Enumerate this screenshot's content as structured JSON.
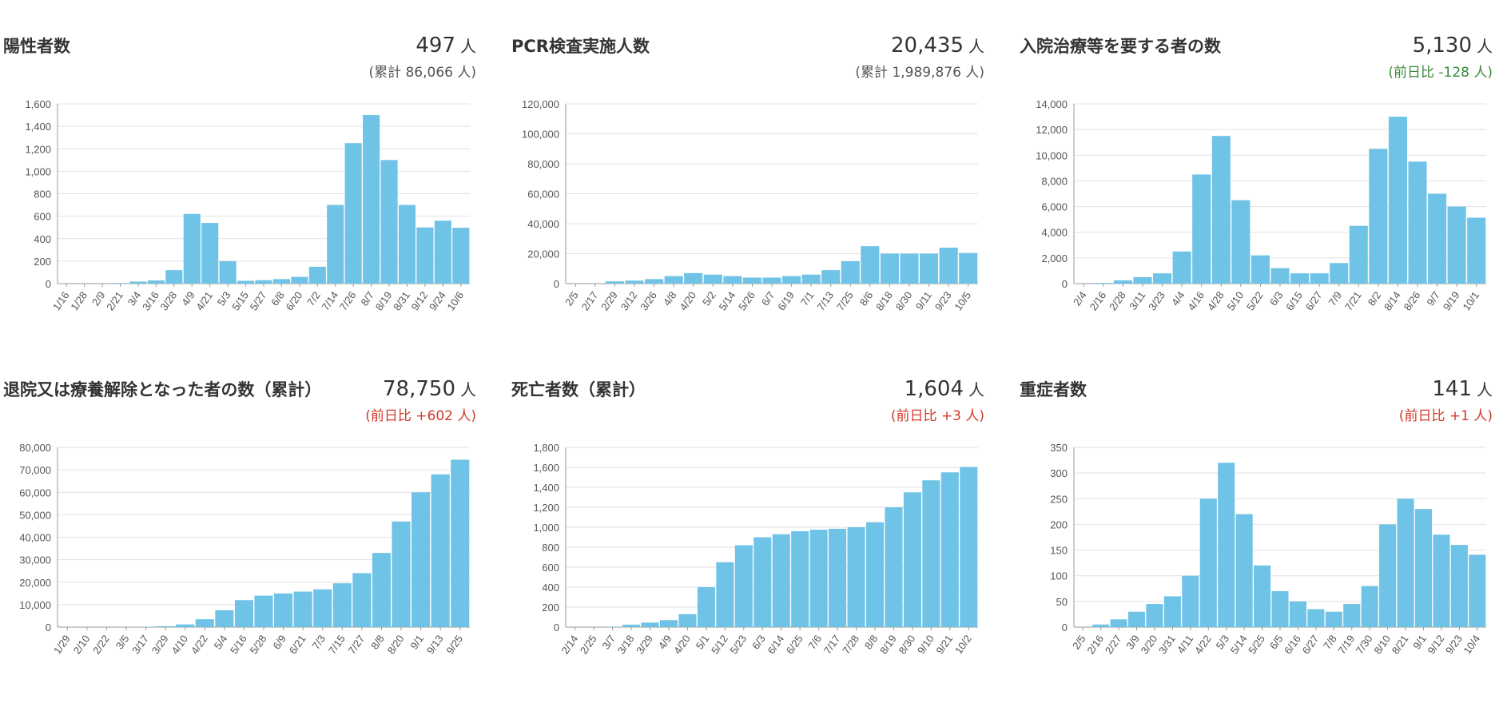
{
  "colors": {
    "bar": "#6fc3e6",
    "grid": "#e2e2e2",
    "axis": "#999999",
    "label": "#555555",
    "title": "#333333",
    "neg_green": "#3a8a3a",
    "pos_red": "#d23a2a"
  },
  "panels": [
    {
      "title": "陽性者数",
      "value": "497",
      "unit": "人",
      "sub": "(累計 86,066 人)",
      "sub_color": "#555555"
    },
    {
      "title": "PCR検査実施人数",
      "value": "20,435",
      "unit": "人",
      "sub": "(累計 1,989,876 人)",
      "sub_color": "#555555"
    },
    {
      "title": "入院治療等を要する者の数",
      "value": "5,130",
      "unit": "人",
      "sub": "(前日比 -128 人)",
      "sub_color": "#3a8a3a"
    },
    {
      "title": "退院又は療養解除となった者の数（累計）",
      "value": "78,750",
      "unit": "人",
      "sub": "(前日比 +602 人)",
      "sub_color": "#d23a2a"
    },
    {
      "title": "死亡者数（累計）",
      "value": "1,604",
      "unit": "人",
      "sub": "(前日比 +3 人)",
      "sub_color": "#d23a2a"
    },
    {
      "title": "重症者数",
      "value": "141",
      "unit": "人",
      "sub": "(前日比 +1 人)",
      "sub_color": "#d23a2a"
    }
  ],
  "chart_data": [
    {
      "type": "bar",
      "ylim": [
        0,
        1600
      ],
      "yticks": [
        "0",
        "200",
        "400",
        "600",
        "800",
        "1,000",
        "1,200",
        "1,400",
        "1,600"
      ],
      "categories": [
        "1/16",
        "1/28",
        "2/9",
        "2/21",
        "3/4",
        "3/16",
        "3/28",
        "4/9",
        "4/21",
        "5/3",
        "5/15",
        "5/27",
        "6/8",
        "6/20",
        "7/2",
        "7/14",
        "7/26",
        "8/7",
        "8/19",
        "8/31",
        "9/12",
        "9/24",
        "10/6"
      ],
      "values": [
        0,
        0,
        1,
        5,
        18,
        28,
        120,
        620,
        540,
        200,
        25,
        30,
        40,
        60,
        150,
        700,
        1250,
        1500,
        1100,
        700,
        500,
        560,
        497
      ]
    },
    {
      "type": "bar",
      "ylim": [
        0,
        120000
      ],
      "yticks": [
        "0",
        "20,000",
        "40,000",
        "60,000",
        "80,000",
        "100,000",
        "120,000"
      ],
      "categories": [
        "2/5",
        "2/17",
        "2/29",
        "3/12",
        "3/26",
        "4/8",
        "4/20",
        "5/2",
        "5/14",
        "5/26",
        "6/7",
        "6/19",
        "7/1",
        "7/13",
        "7/25",
        "8/6",
        "8/18",
        "8/30",
        "9/11",
        "9/23",
        "10/5"
      ],
      "values": [
        0,
        0,
        1500,
        2000,
        3000,
        5000,
        7000,
        6000,
        5000,
        4000,
        4000,
        5000,
        6000,
        9000,
        15000,
        25000,
        20000,
        20000,
        20000,
        24000,
        20435
      ]
    },
    {
      "type": "bar",
      "ylim": [
        0,
        14000
      ],
      "yticks": [
        "0",
        "2,000",
        "4,000",
        "6,000",
        "8,000",
        "10,000",
        "12,000",
        "14,000"
      ],
      "categories": [
        "2/4",
        "2/16",
        "2/28",
        "3/11",
        "3/23",
        "4/4",
        "4/16",
        "4/28",
        "5/10",
        "5/22",
        "6/3",
        "6/15",
        "6/27",
        "7/9",
        "7/21",
        "8/2",
        "8/14",
        "8/26",
        "9/7",
        "9/19",
        "10/1"
      ],
      "values": [
        0,
        50,
        250,
        500,
        800,
        2500,
        8500,
        11500,
        6500,
        2200,
        1200,
        800,
        800,
        1600,
        4500,
        10500,
        13000,
        9500,
        7000,
        6000,
        5130
      ]
    },
    {
      "type": "bar",
      "ylim": [
        0,
        80000
      ],
      "yticks": [
        "0",
        "10,000",
        "20,000",
        "30,000",
        "40,000",
        "50,000",
        "60,000",
        "70,000",
        "80,000"
      ],
      "categories": [
        "1/29",
        "2/10",
        "2/22",
        "3/5",
        "3/17",
        "3/29",
        "4/10",
        "4/22",
        "5/4",
        "5/16",
        "5/28",
        "6/9",
        "6/21",
        "7/3",
        "7/15",
        "7/27",
        "8/8",
        "8/20",
        "9/1",
        "9/13",
        "9/25"
      ],
      "values": [
        0,
        0,
        0,
        50,
        150,
        400,
        1200,
        3500,
        7500,
        12000,
        14000,
        15000,
        15800,
        16800,
        19500,
        24000,
        33000,
        47000,
        60000,
        68000,
        74500
      ]
    },
    {
      "type": "bar",
      "ylim": [
        0,
        1800
      ],
      "yticks": [
        "0",
        "200",
        "400",
        "600",
        "800",
        "1,000",
        "1,200",
        "1,400",
        "1,600",
        "1,800"
      ],
      "categories": [
        "2/14",
        "2/25",
        "3/7",
        "3/18",
        "3/29",
        "4/9",
        "4/20",
        "5/1",
        "5/12",
        "5/23",
        "6/3",
        "6/14",
        "6/25",
        "7/6",
        "7/17",
        "7/28",
        "8/8",
        "8/19",
        "8/30",
        "9/10",
        "9/21",
        "10/2"
      ],
      "values": [
        0,
        0,
        5,
        25,
        45,
        70,
        130,
        400,
        650,
        820,
        900,
        930,
        960,
        975,
        985,
        1000,
        1050,
        1200,
        1350,
        1470,
        1550,
        1604
      ]
    },
    {
      "type": "bar",
      "ylim": [
        0,
        350
      ],
      "yticks": [
        "0",
        "50",
        "100",
        "150",
        "200",
        "250",
        "300",
        "350"
      ],
      "categories": [
        "2/5",
        "2/16",
        "2/27",
        "3/9",
        "3/20",
        "3/31",
        "4/11",
        "4/22",
        "5/3",
        "5/14",
        "5/25",
        "6/5",
        "6/16",
        "6/27",
        "7/8",
        "7/19",
        "7/30",
        "8/10",
        "8/21",
        "9/1",
        "9/12",
        "9/23",
        "10/4"
      ],
      "values": [
        0,
        5,
        15,
        30,
        45,
        60,
        100,
        250,
        320,
        220,
        120,
        70,
        50,
        35,
        30,
        45,
        80,
        200,
        250,
        230,
        180,
        160,
        141
      ]
    }
  ]
}
